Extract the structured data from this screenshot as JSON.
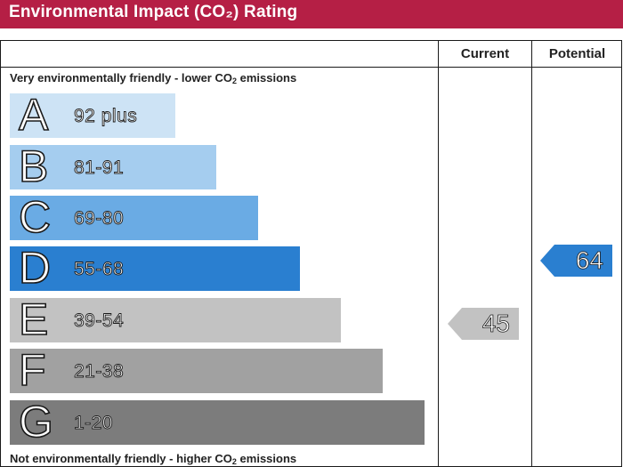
{
  "header": {
    "title": "Environmental Impact (CO₂) Rating"
  },
  "columns": {
    "current": "Current",
    "potential": "Potential"
  },
  "notes": {
    "top_text": "Very environmentally friendly - lower CO",
    "top_sub": "2",
    "top_tail": " emissions",
    "bottom_text": "Not environmentally friendly - higher CO",
    "bottom_sub": "2",
    "bottom_tail": " emissions"
  },
  "bands": [
    {
      "letter": "A",
      "range": "92 plus",
      "color": "#cde3f5"
    },
    {
      "letter": "B",
      "range": "81-91",
      "color": "#a5cdef"
    },
    {
      "letter": "C",
      "range": "69-80",
      "color": "#6aabe4"
    },
    {
      "letter": "D",
      "range": "55-68",
      "color": "#2a7fd0"
    },
    {
      "letter": "E",
      "range": "39-54",
      "color": "#c2c2c2"
    },
    {
      "letter": "F",
      "range": "21-38",
      "color": "#a1a1a1"
    },
    {
      "letter": "G",
      "range": "1-20",
      "color": "#7c7c7c"
    }
  ],
  "ratings": {
    "current": {
      "value": "45",
      "band": "E",
      "color": "#c2c2c2"
    },
    "potential": {
      "value": "64",
      "band": "D",
      "color": "#2a7fd0"
    }
  }
}
